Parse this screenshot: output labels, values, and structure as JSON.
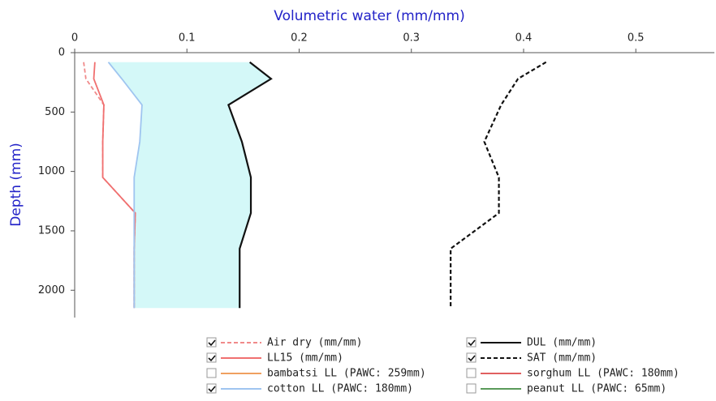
{
  "chart_data": {
    "type": "line",
    "title": "Volumetric water (mm/mm)",
    "y_label": "Depth (mm)",
    "y": [
      80,
      220,
      440,
      750,
      1050,
      1350,
      1650,
      2150
    ],
    "xlim": [
      0,
      0.57
    ],
    "xticks": [
      0,
      0.1,
      0.2,
      0.3,
      0.4,
      0.5
    ],
    "ylim": [
      0,
      2230
    ],
    "yticks": [
      0,
      500,
      1000,
      1500,
      2000
    ],
    "y_inverted": true,
    "fill_between": [
      "cotton LL (PAWC: 180mm)",
      "DUL (mm/mm)"
    ],
    "fill_color": "#d4f8f8",
    "series": [
      {
        "name": "Air dry (mm/mm)",
        "color": "#f08a8a",
        "dash": true,
        "visible": true,
        "values": [
          0.008,
          0.01,
          0.026,
          0.025,
          0.025,
          0.054,
          0.053,
          0.053
        ]
      },
      {
        "name": "LL15 (mm/mm)",
        "color": "#f07070",
        "dash": false,
        "visible": true,
        "values": [
          0.018,
          0.017,
          0.026,
          0.025,
          0.025,
          0.054,
          0.053,
          0.053
        ]
      },
      {
        "name": "bambatsi LL (PAWC: 259mm)",
        "color": "#f0a060",
        "dash": false,
        "visible": false,
        "values": [
          null,
          null,
          null,
          null,
          null,
          null,
          null,
          null
        ]
      },
      {
        "name": "cotton LL (PAWC: 180mm)",
        "color": "#9fc5f0",
        "dash": false,
        "visible": true,
        "values": [
          0.03,
          0.042,
          0.06,
          0.058,
          0.053,
          0.053,
          0.053,
          0.053
        ]
      },
      {
        "name": "DUL (mm/mm)",
        "color": "#111111",
        "dash": false,
        "visible": true,
        "values": [
          0.156,
          0.175,
          0.137,
          0.149,
          0.157,
          0.157,
          0.147,
          0.147
        ]
      },
      {
        "name": "SAT (mm/mm)",
        "color": "#111111",
        "dash": true,
        "visible": true,
        "values": [
          0.42,
          0.395,
          0.38,
          0.365,
          0.378,
          0.378,
          0.335,
          0.335
        ]
      },
      {
        "name": "sorghum LL (PAWC: 180mm)",
        "color": "#e06060",
        "dash": false,
        "visible": false,
        "values": [
          null,
          null,
          null,
          null,
          null,
          null,
          null,
          null
        ]
      },
      {
        "name": "peanut LL (PAWC: 65mm)",
        "color": "#5a9a5a",
        "dash": false,
        "visible": false,
        "values": [
          null,
          null,
          null,
          null,
          null,
          null,
          null,
          null
        ]
      }
    ]
  }
}
